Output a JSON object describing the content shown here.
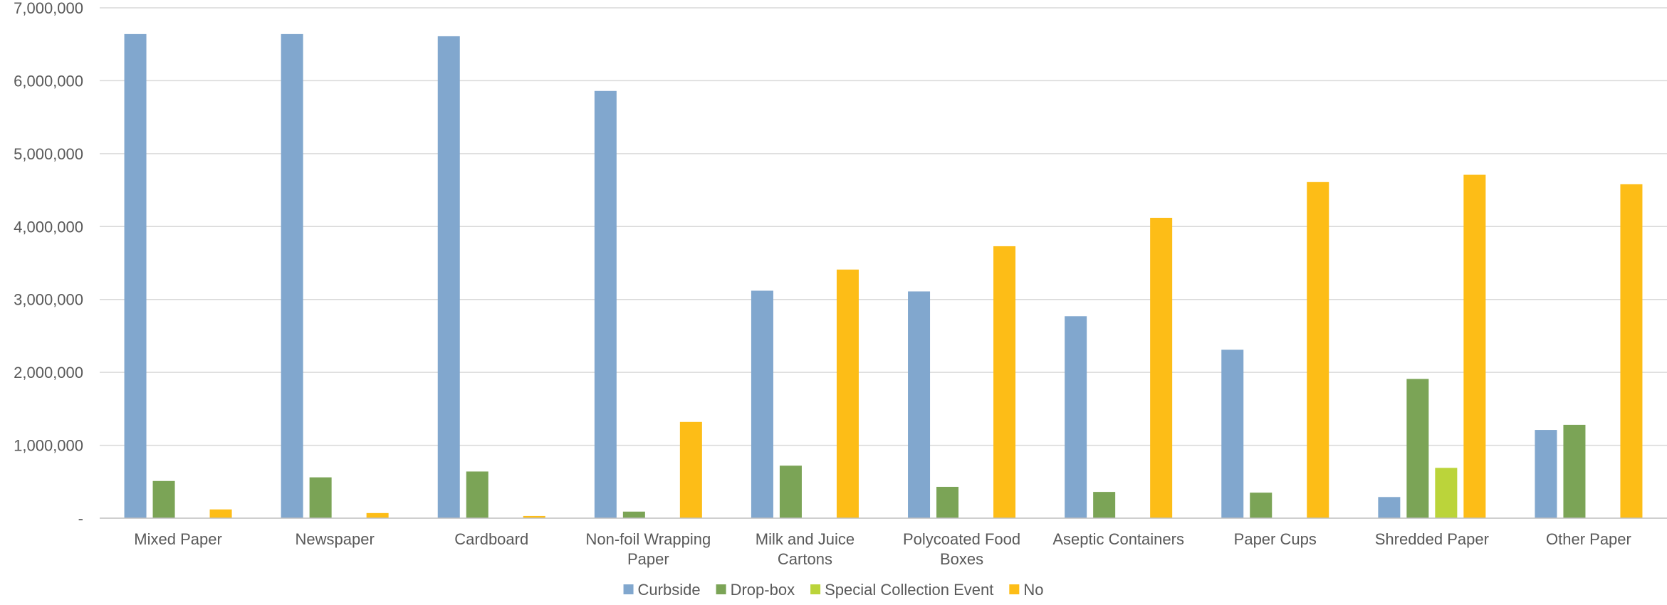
{
  "chart_data": {
    "type": "bar",
    "title": "",
    "xlabel": "",
    "ylabel": "",
    "ylim": [
      0,
      7000000
    ],
    "yticks": [
      {
        "value": 0,
        "label": "-"
      },
      {
        "value": 1000000,
        "label": "1,000,000"
      },
      {
        "value": 2000000,
        "label": "2,000,000"
      },
      {
        "value": 3000000,
        "label": "3,000,000"
      },
      {
        "value": 4000000,
        "label": "4,000,000"
      },
      {
        "value": 5000000,
        "label": "5,000,000"
      },
      {
        "value": 6000000,
        "label": "6,000,000"
      },
      {
        "value": 7000000,
        "label": "7,000,000"
      }
    ],
    "grid": true,
    "legend_position": "bottom",
    "categories": [
      [
        "Mixed Paper"
      ],
      [
        "Newspaper"
      ],
      [
        "Cardboard"
      ],
      [
        "Non-foil Wrapping",
        "Paper"
      ],
      [
        "Milk and Juice",
        "Cartons"
      ],
      [
        "Polycoated Food",
        "Boxes"
      ],
      [
        "Aseptic Containers"
      ],
      [
        "Paper Cups"
      ],
      [
        "Shredded Paper"
      ],
      [
        "Other Paper"
      ]
    ],
    "series": [
      {
        "name": "Curbside",
        "color": "#81A7CE",
        "values": [
          6640000,
          6640000,
          6610000,
          5860000,
          3120000,
          3110000,
          2770000,
          2310000,
          290000,
          1210000
        ]
      },
      {
        "name": "Drop-box",
        "color": "#7BA456",
        "values": [
          510000,
          560000,
          640000,
          90000,
          720000,
          430000,
          360000,
          350000,
          1910000,
          1280000
        ]
      },
      {
        "name": "Special Collection Event",
        "color": "#BBD43A",
        "values": [
          0,
          0,
          0,
          0,
          0,
          0,
          0,
          0,
          690000,
          0
        ]
      },
      {
        "name": "No",
        "color": "#FDBD17",
        "values": [
          120000,
          70000,
          30000,
          1320000,
          3410000,
          3730000,
          4120000,
          4610000,
          4710000,
          4580000
        ]
      }
    ]
  }
}
